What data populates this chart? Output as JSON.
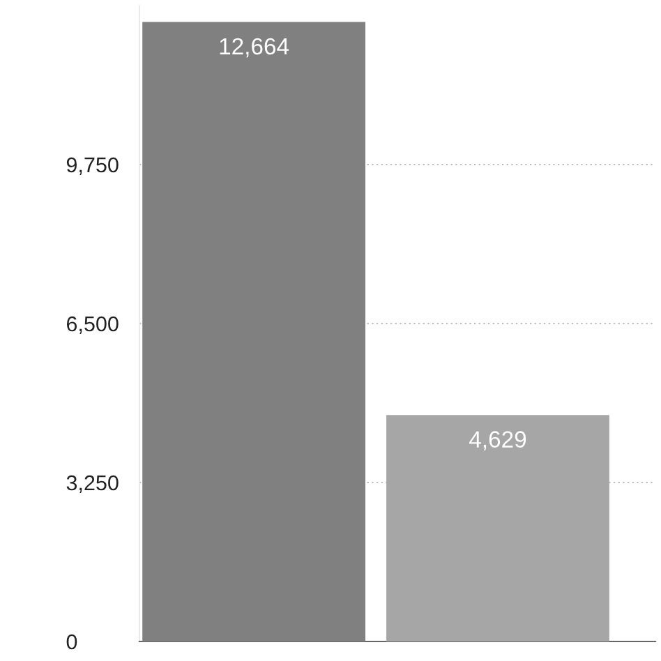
{
  "chart_data": {
    "type": "bar",
    "categories": [
      null,
      null
    ],
    "values": [
      12664,
      4629
    ],
    "colors": [
      "#808080",
      "#a6a6a6"
    ],
    "value_labels": [
      "12,664",
      "4,629"
    ],
    "ylim": [
      0,
      13000
    ],
    "yticks": [
      0,
      {
        "value": 3250,
        "label": "3,250"
      },
      {
        "value": 6500,
        "label": "6,500"
      },
      {
        "value": 9750,
        "label": "9,750"
      }
    ],
    "grid": "y"
  }
}
